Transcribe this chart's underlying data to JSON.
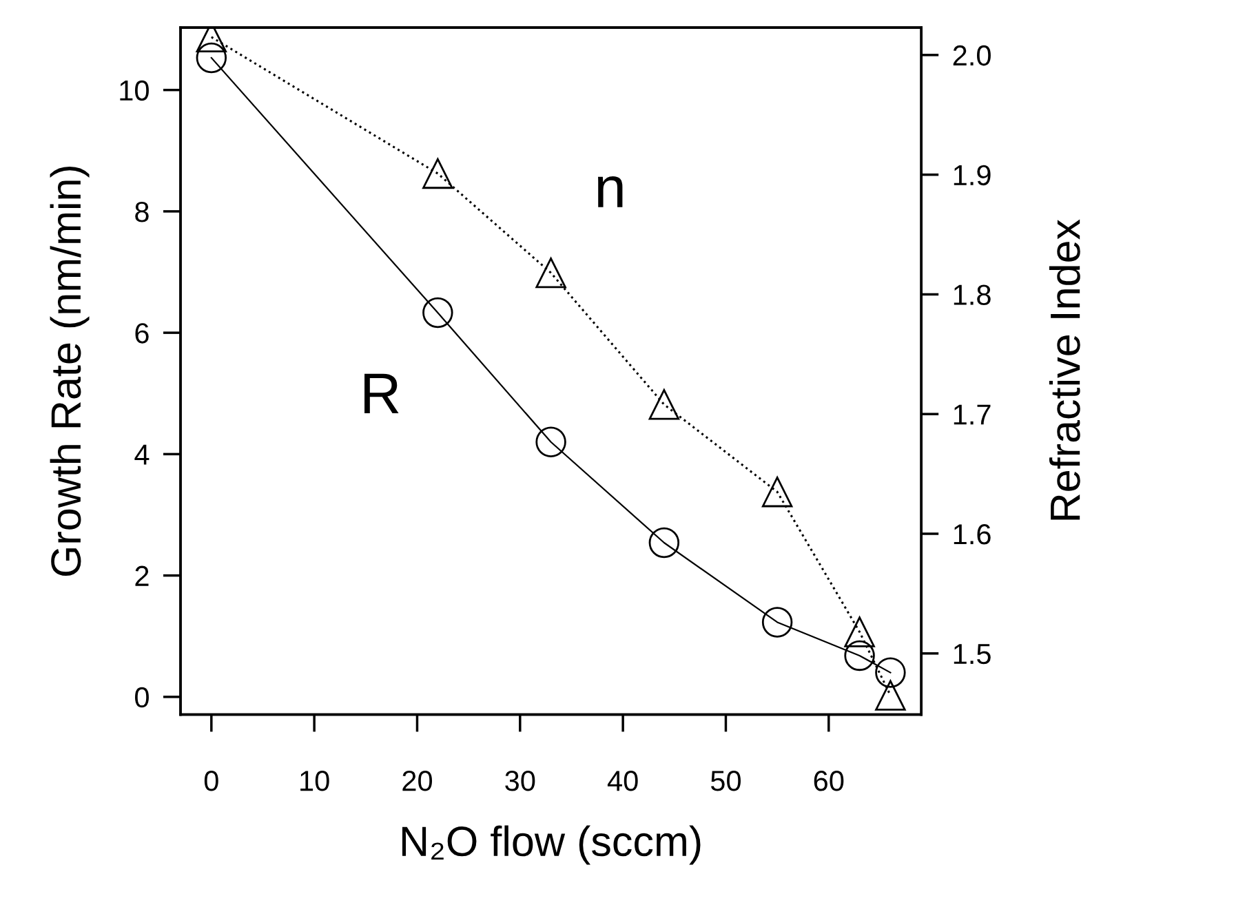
{
  "chart_data": {
    "type": "line",
    "xlabel": "N₂O flow (sccm)",
    "ylabel": "Growth Rate (nm/min)",
    "y2label": "Refractive Index",
    "x": [
      0,
      22,
      33,
      44,
      55,
      63,
      66
    ],
    "series": [
      {
        "name": "R",
        "color": "#000000",
        "marker": "circle",
        "line_style": "solid",
        "values": [
          10.53,
          6.33,
          4.2,
          2.54,
          1.23,
          0.68,
          0.4
        ]
      },
      {
        "name": "n",
        "color": "#000000",
        "marker": "triangle",
        "line_style": "dotted",
        "axis": "y2",
        "values": [
          2.015,
          1.901,
          1.818,
          1.708,
          1.635,
          1.518,
          1.465
        ]
      }
    ],
    "xlim": [
      -3,
      69
    ],
    "xticks": [
      0,
      10,
      20,
      30,
      40,
      50,
      60
    ],
    "ylim": [
      -0.29,
      11.03
    ],
    "yticks": [
      0,
      2,
      4,
      6,
      8,
      10
    ],
    "y2lim": [
      1.449,
      2.023
    ],
    "y2ticks": [
      {
        "value": 1.5,
        "label": "1.5"
      },
      {
        "value": 1.6,
        "label": "1.6"
      },
      {
        "value": 1.7,
        "label": "1.7"
      },
      {
        "value": 1.8,
        "label": "1.8"
      },
      {
        "value": 1.9,
        "label": "1.9"
      },
      {
        "value": 2.0,
        "label": "2.0"
      }
    ],
    "grid": false,
    "legend": false
  }
}
